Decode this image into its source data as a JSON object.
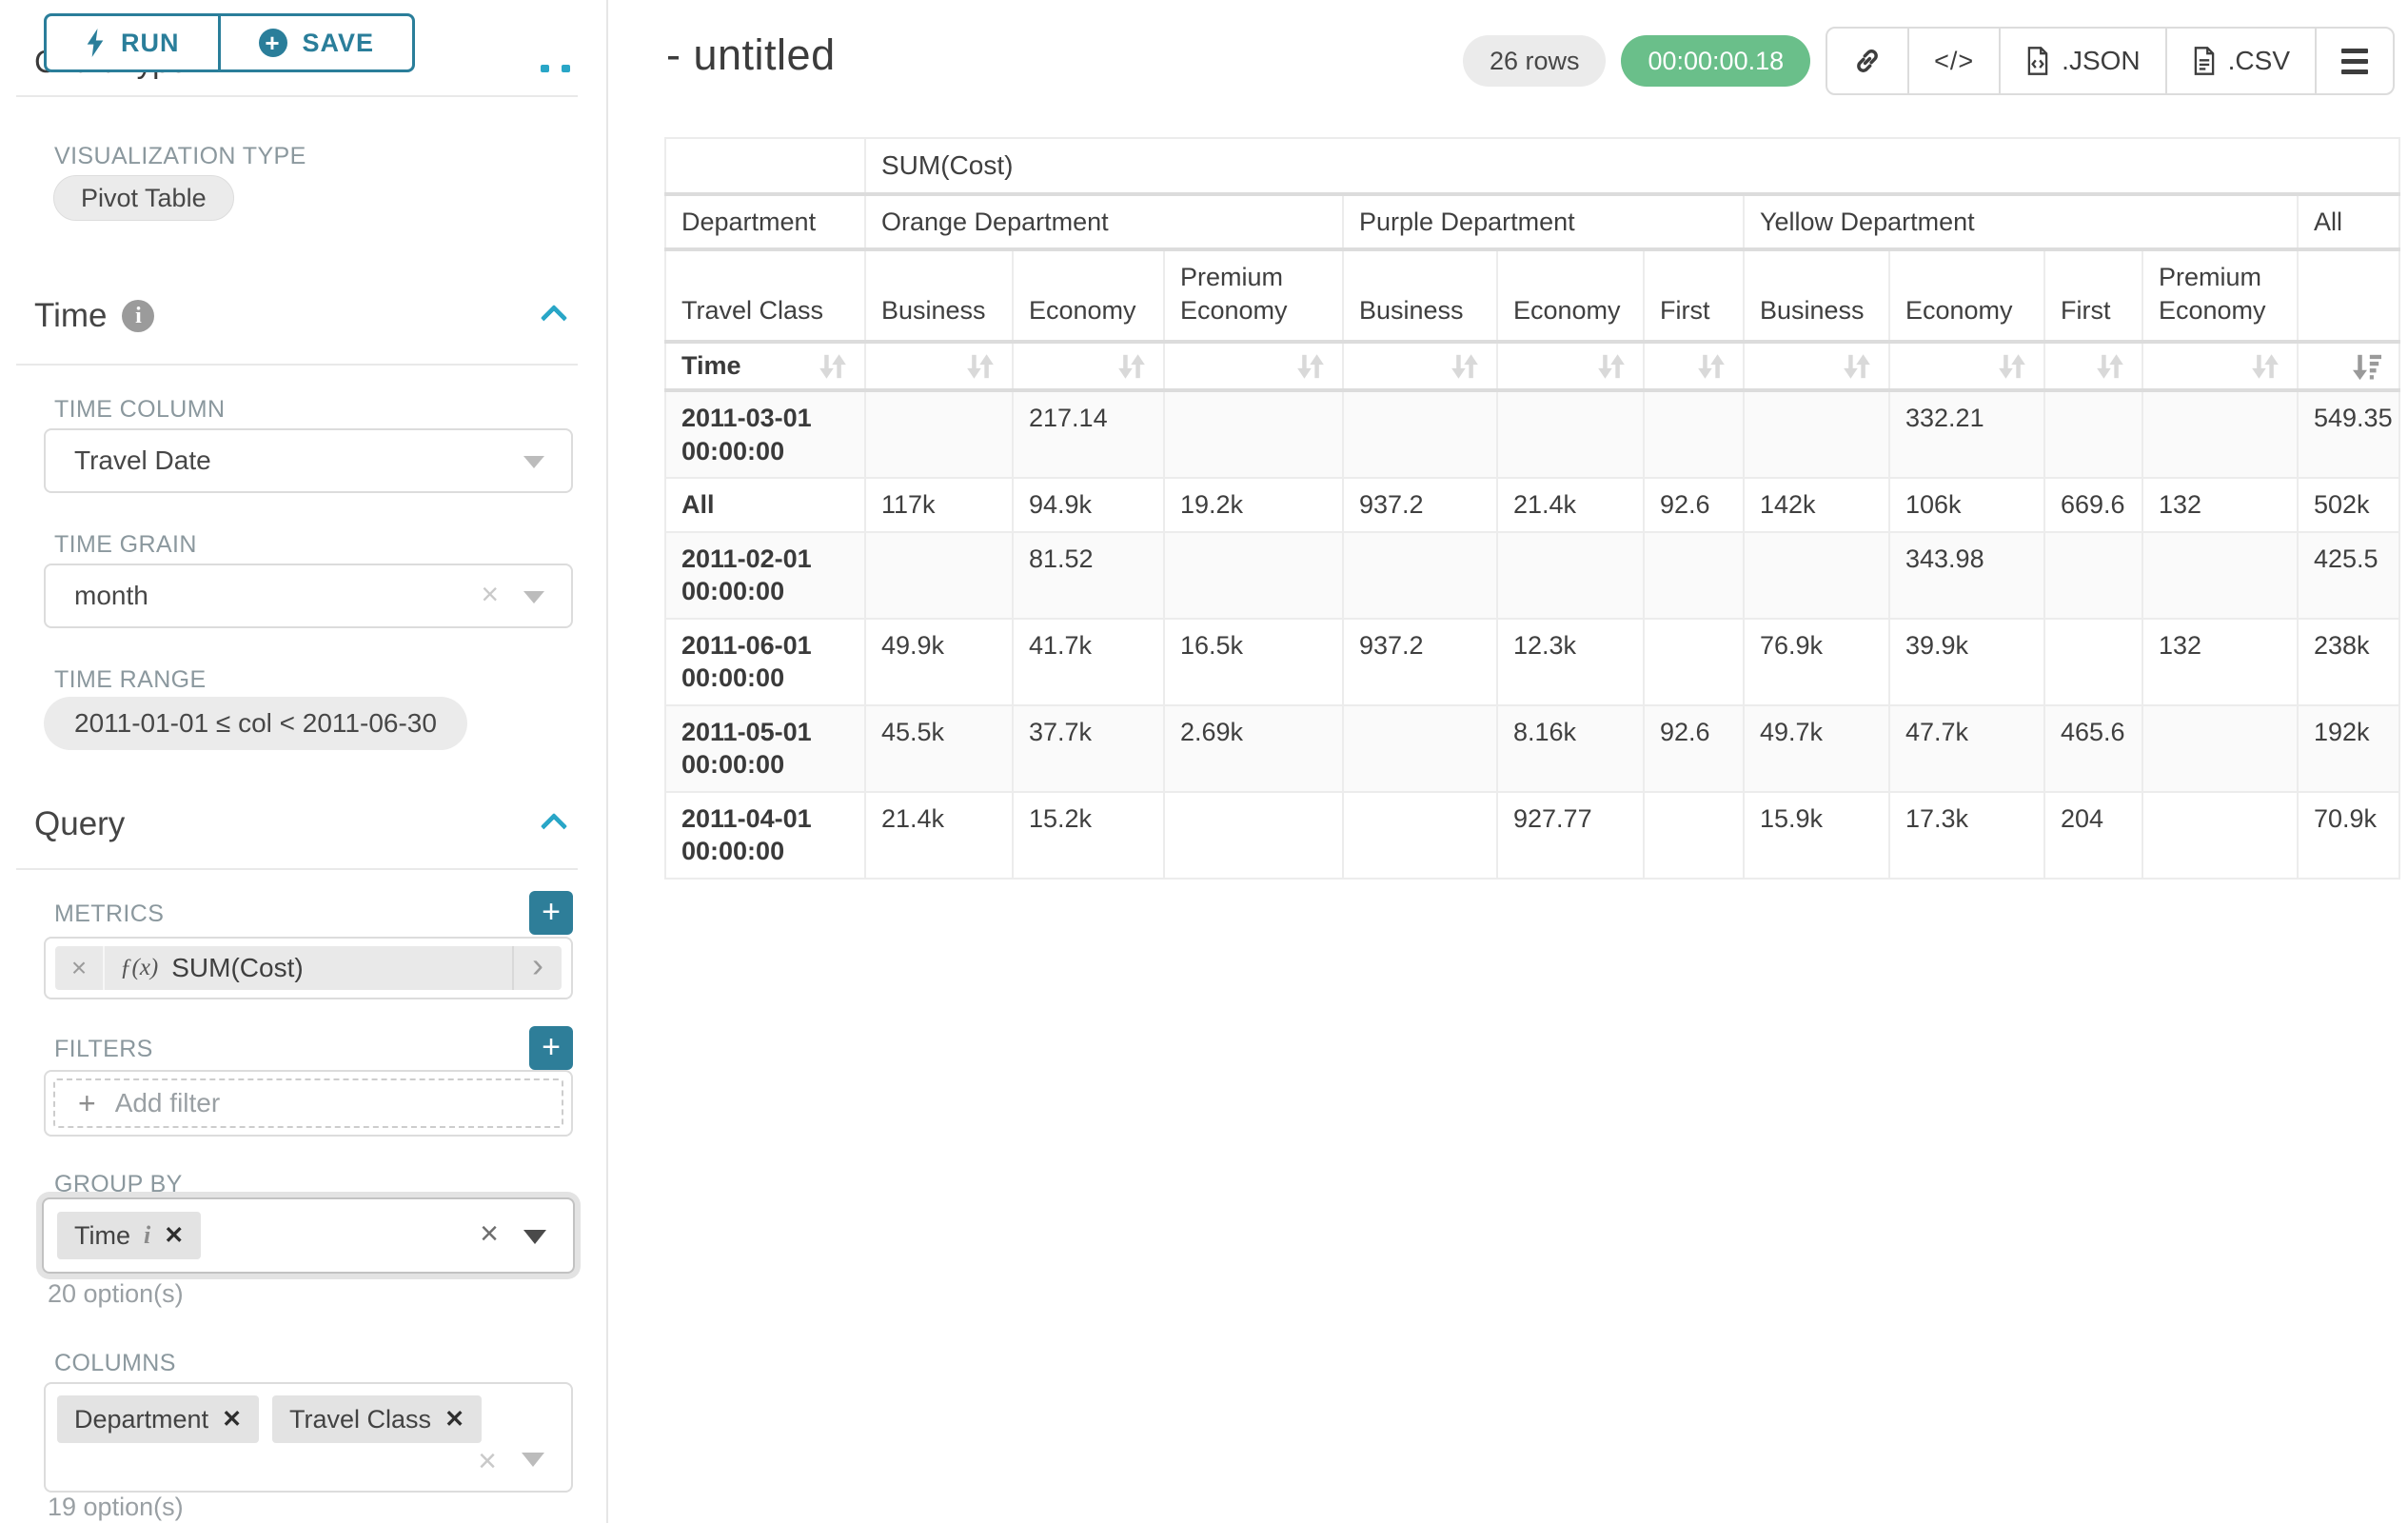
{
  "colors": {
    "accent_teal": "#2a7e9a",
    "accent_blue": "#29a6c7",
    "badge_green": "#6abf8a"
  },
  "toolbar": {
    "run_label": "RUN",
    "save_label": "SAVE"
  },
  "sidebar": {
    "chart_type_heading": "Chart Type",
    "visualization_type_label": "VISUALIZATION TYPE",
    "visualization_type_value": "Pivot Table",
    "time": {
      "title": "Time",
      "time_column_label": "TIME COLUMN",
      "time_column_value": "Travel Date",
      "time_grain_label": "TIME GRAIN",
      "time_grain_value": "month",
      "time_range_label": "TIME RANGE",
      "time_range_value": "2011-01-01 ≤ col < 2011-06-30"
    },
    "query": {
      "title": "Query",
      "metrics_label": "METRICS",
      "metric_fx": "ƒ(x)",
      "metric_value": "SUM(Cost)",
      "filters_label": "FILTERS",
      "add_filter_label": "Add filter",
      "group_by_label": "GROUP BY",
      "group_by_chips": [
        {
          "label": "Time",
          "info": true
        }
      ],
      "group_by_hint": "20 option(s)",
      "columns_label": "COLUMNS",
      "columns_chips": [
        {
          "label": "Department"
        },
        {
          "label": "Travel Class"
        }
      ],
      "columns_hint": "19 option(s)"
    }
  },
  "main": {
    "title": "- untitled",
    "rows_badge": "26 rows",
    "timer_badge": "00:00:00.18",
    "export_json_label": ".JSON",
    "export_csv_label": ".CSV"
  },
  "table": {
    "metric_label": "SUM(Cost)",
    "column_dimension": "Department",
    "sub_dimension": "Travel Class",
    "row_dimension": "Time",
    "groups": [
      {
        "label": "Orange Department",
        "columns": [
          "Business",
          "Economy",
          "Premium Economy"
        ]
      },
      {
        "label": "Purple Department",
        "columns": [
          "Business",
          "Economy",
          "First"
        ]
      },
      {
        "label": "Yellow Department",
        "columns": [
          "Business",
          "Economy",
          "First",
          "Premium Economy"
        ]
      },
      {
        "label": "All",
        "columns": [
          ""
        ]
      }
    ],
    "sort": {
      "column_index": 10,
      "direction": "desc"
    },
    "rows": [
      {
        "label": "2011-03-01 00:00:00",
        "values": [
          "",
          "217.14",
          "",
          "",
          "",
          "",
          "",
          "332.21",
          "",
          "",
          "549.35"
        ]
      },
      {
        "label": "All",
        "values": [
          "117k",
          "94.9k",
          "19.2k",
          "937.2",
          "21.4k",
          "92.6",
          "142k",
          "106k",
          "669.6",
          "132",
          "502k"
        ]
      },
      {
        "label": "2011-02-01 00:00:00",
        "values": [
          "",
          "81.52",
          "",
          "",
          "",
          "",
          "",
          "343.98",
          "",
          "",
          "425.5"
        ]
      },
      {
        "label": "2011-06-01 00:00:00",
        "values": [
          "49.9k",
          "41.7k",
          "16.5k",
          "937.2",
          "12.3k",
          "",
          "76.9k",
          "39.9k",
          "",
          "132",
          "238k"
        ]
      },
      {
        "label": "2011-05-01 00:00:00",
        "values": [
          "45.5k",
          "37.7k",
          "2.69k",
          "",
          "8.16k",
          "92.6",
          "49.7k",
          "47.7k",
          "465.6",
          "",
          "192k"
        ]
      },
      {
        "label": "2011-04-01 00:00:00",
        "values": [
          "21.4k",
          "15.2k",
          "",
          "",
          "927.77",
          "",
          "15.9k",
          "17.3k",
          "204",
          "",
          "70.9k"
        ]
      }
    ]
  }
}
